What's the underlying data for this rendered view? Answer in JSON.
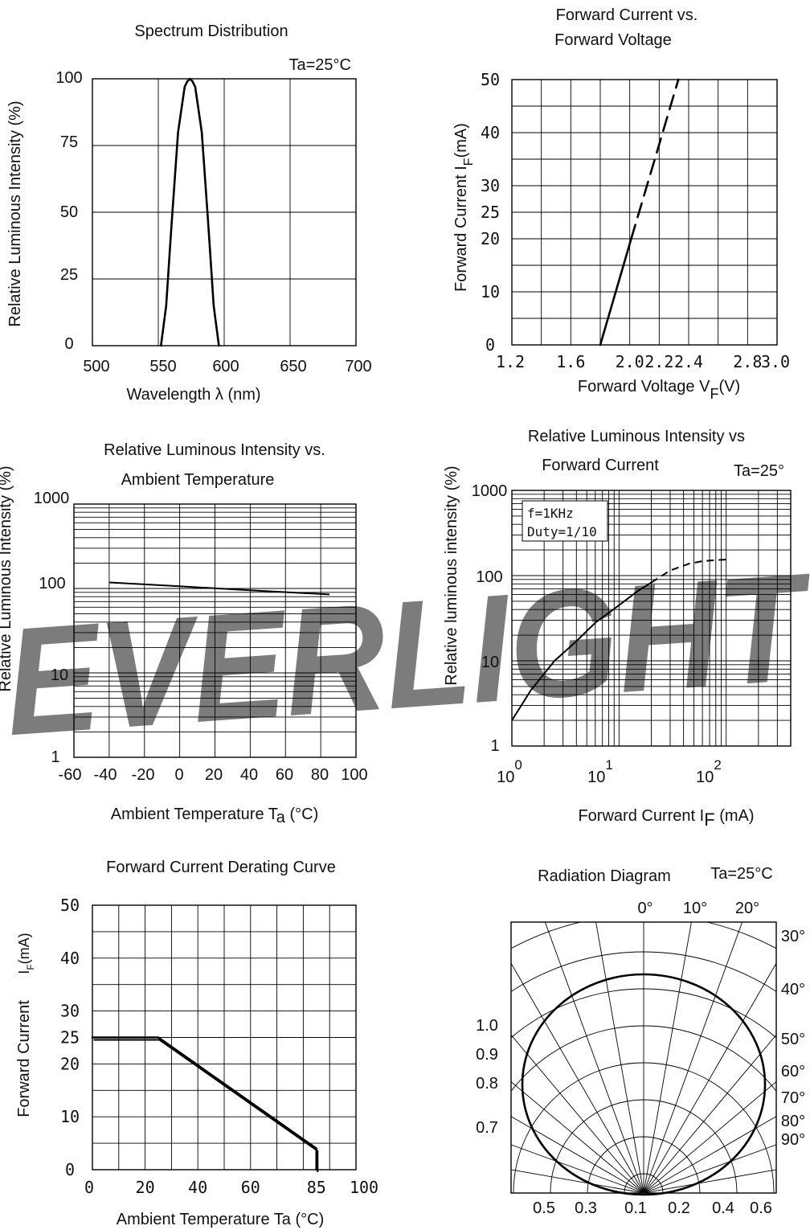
{
  "watermark": {
    "text": "EVERLIGHT",
    "color": "#9fd3f0"
  },
  "chart_data": [
    {
      "id": "spectrum",
      "type": "line",
      "title": "Spectrum Distribution",
      "annotation": "Ta=25°C",
      "xlabel": "Wavelength λ (nm)",
      "ylabel": "Relative Luminous Intensity (%)",
      "xlim": [
        500,
        700
      ],
      "ylim": [
        0,
        100
      ],
      "x_ticks": [
        "500",
        "550",
        "600",
        "650",
        "700"
      ],
      "y_ticks": [
        "0",
        "25",
        "50",
        "75",
        "100"
      ],
      "series": [
        {
          "x": [
            552,
            556,
            560,
            565,
            570,
            572,
            574,
            576,
            578,
            583,
            588,
            592,
            596
          ],
          "y": [
            0,
            15,
            45,
            80,
            97,
            99,
            100,
            99,
            97,
            80,
            45,
            15,
            0
          ]
        }
      ]
    },
    {
      "id": "iv",
      "type": "line",
      "title": [
        "Forward Current vs.",
        "Forward Voltage"
      ],
      "xlabel": "Forward Voltage",
      "xlabel_symbol": "V",
      "xlabel_sub": "F",
      "xlabel_unit": "(V)",
      "ylabel": "Forward Current I",
      "ylabel_sub": "F",
      "ylabel_unit": "(mA)",
      "xlim": [
        1.2,
        3.0
      ],
      "ylim": [
        0,
        50
      ],
      "x_ticks": [
        "1.2",
        "1.6",
        "2.0",
        "2.2",
        "2.4",
        "2.8",
        "3.0"
      ],
      "y_ticks": [
        "0",
        "10",
        "20",
        "25",
        "30",
        "40",
        "50"
      ],
      "series": [
        {
          "style": "solid",
          "x": [
            1.8,
            2.01
          ],
          "y": [
            0,
            20
          ]
        },
        {
          "style": "dashed",
          "x": [
            2.01,
            2.33
          ],
          "y": [
            20,
            50
          ]
        }
      ]
    },
    {
      "id": "temp",
      "type": "line",
      "title": [
        "Relative Luminous Intensity vs.",
        "Ambient Temperature"
      ],
      "xlabel": "Ambient Temperature T",
      "xlabel_sub": "a",
      "xlabel_unit": "(°C)",
      "ylabel": "Relative Luminous Intensity",
      "ylabel_unit": "(%)",
      "yscale": "log",
      "xlim": [
        -60,
        100
      ],
      "ylim": [
        1,
        1000
      ],
      "x_ticks": [
        "-60",
        "-40",
        "-20",
        "0",
        "20",
        "40",
        "60",
        "80",
        "100"
      ],
      "y_ticks": [
        "1",
        "10",
        "100",
        "1000"
      ],
      "series": [
        {
          "x": [
            -40,
            0,
            40,
            85
          ],
          "y": [
            118,
            106,
            95,
            85
          ]
        }
      ]
    },
    {
      "id": "ifrel",
      "type": "line",
      "title": [
        "Relative Luminous Intensity vs",
        "Forward Current"
      ],
      "annotation": "Ta=25°",
      "note": [
        "f=1KHz",
        "Duty=1/10"
      ],
      "xlabel": "Forward Current",
      "xlabel_symbol": "I",
      "xlabel_sub": "F",
      "xlabel_unit": "(mA)",
      "ylabel": "Relative luminous intensity",
      "ylabel_unit": "(%)",
      "xscale": "log",
      "yscale": "log",
      "xlim": [
        1,
        400
      ],
      "ylim": [
        1,
        1000
      ],
      "x_ticks": [
        {
          "base": "10",
          "exp": "0"
        },
        {
          "base": "10",
          "exp": "1"
        },
        {
          "base": "10",
          "exp": "2"
        }
      ],
      "y_ticks": [
        "1",
        "10",
        "100",
        "1000"
      ],
      "series": [
        {
          "style": "solid",
          "x": [
            1,
            1.5,
            2.5,
            4,
            6,
            10,
            15,
            20
          ],
          "y": [
            2,
            4.5,
            10,
            17,
            28,
            45,
            66,
            83
          ]
        },
        {
          "style": "dashed",
          "x": [
            20,
            30,
            45,
            60,
            80,
            100
          ],
          "y": [
            83,
            115,
            138,
            148,
            152,
            154
          ]
        }
      ]
    },
    {
      "id": "derating",
      "type": "line",
      "title": "Forward Current Derating Curve",
      "xlabel": "Ambient Temperature Ta (°C)",
      "ylabel": "Forward Current",
      "ylabel_symbol": "I",
      "ylabel_sub": "F",
      "ylabel_unit": "(mA)",
      "xlim": [
        0,
        100
      ],
      "ylim": [
        0,
        50
      ],
      "x_ticks": [
        "0",
        "20",
        "40",
        "60",
        "85",
        "100"
      ],
      "y_ticks": [
        "0",
        "10",
        "20",
        "25",
        "30",
        "40",
        "50"
      ],
      "series": [
        {
          "x": [
            0,
            25,
            85,
            85
          ],
          "y": [
            25,
            25,
            4,
            0
          ]
        }
      ]
    },
    {
      "id": "radiation",
      "type": "polar",
      "title": "Radiation Diagram",
      "annotation": "Ta=25°C",
      "angle_labels": [
        "0°",
        "10°",
        "20°",
        "30°",
        "40°",
        "50°",
        "60°",
        "70°",
        "80°",
        "90°"
      ],
      "radius_labels_left": [
        "1.0",
        "0.9",
        "0.8",
        "0.7"
      ],
      "bottom_labels": [
        "0.5",
        "0.3",
        "0.1",
        "0.2",
        "0.4",
        "0.6"
      ],
      "series": [
        {
          "shape": "ellipse",
          "peak": 1.0
        }
      ]
    }
  ]
}
